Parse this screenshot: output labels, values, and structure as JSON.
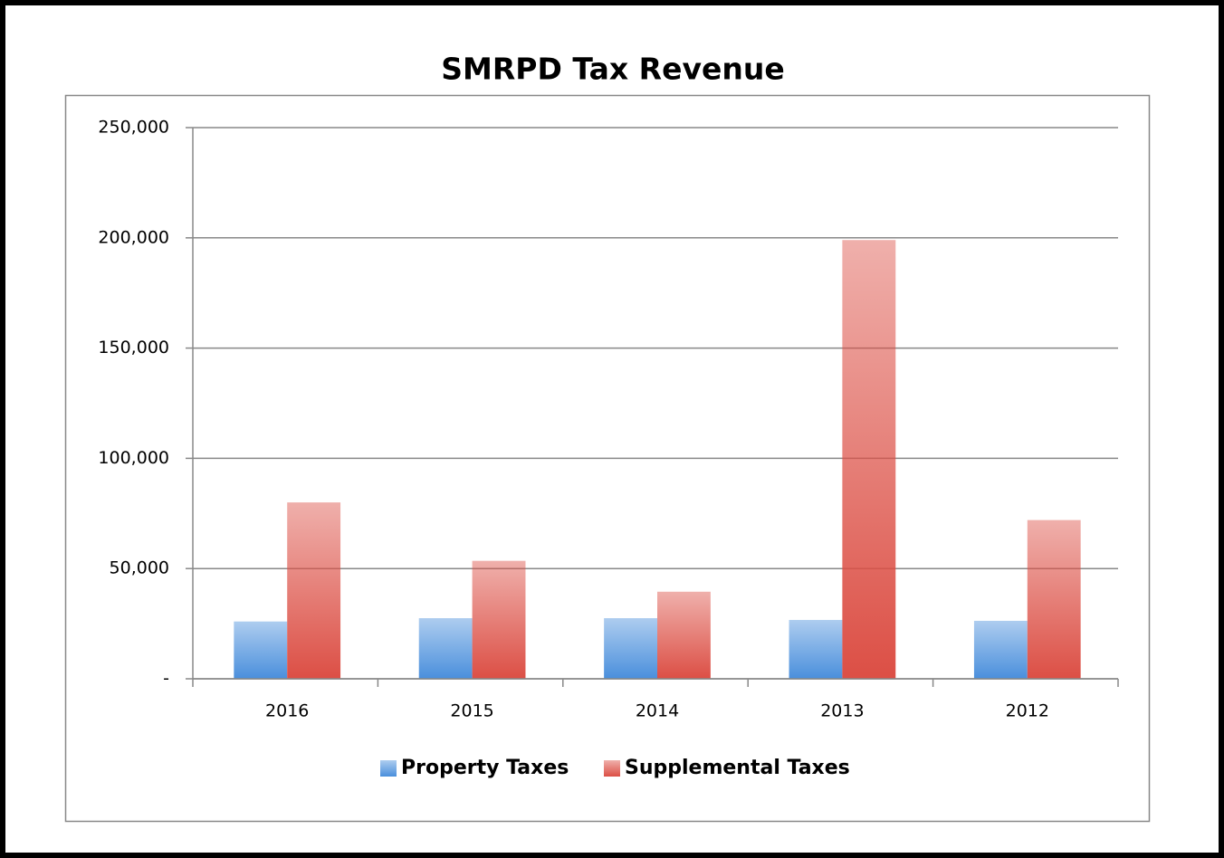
{
  "chart_data": {
    "type": "bar",
    "title": "SMRPD Tax Revenue",
    "categories": [
      "2016",
      "2015",
      "2014",
      "2013",
      "2012"
    ],
    "series": [
      {
        "name": "Property Taxes",
        "color": "#4a8fdc",
        "values": [
          26000,
          27500,
          27500,
          26700,
          26300
        ]
      },
      {
        "name": "Supplemental Taxes",
        "color": "#dc4f45",
        "values": [
          80000,
          53500,
          39500,
          199000,
          72000
        ]
      }
    ],
    "ylim": [
      0,
      250000
    ],
    "yticks": [
      {
        "value": 0,
        "label": "-"
      },
      {
        "value": 50000,
        "label": "50,000"
      },
      {
        "value": 100000,
        "label": "100,000"
      },
      {
        "value": 150000,
        "label": "150,000"
      },
      {
        "value": 200000,
        "label": "200,000"
      },
      {
        "value": 250000,
        "label": "250,000"
      }
    ],
    "grid": true,
    "legend": "bottom"
  }
}
